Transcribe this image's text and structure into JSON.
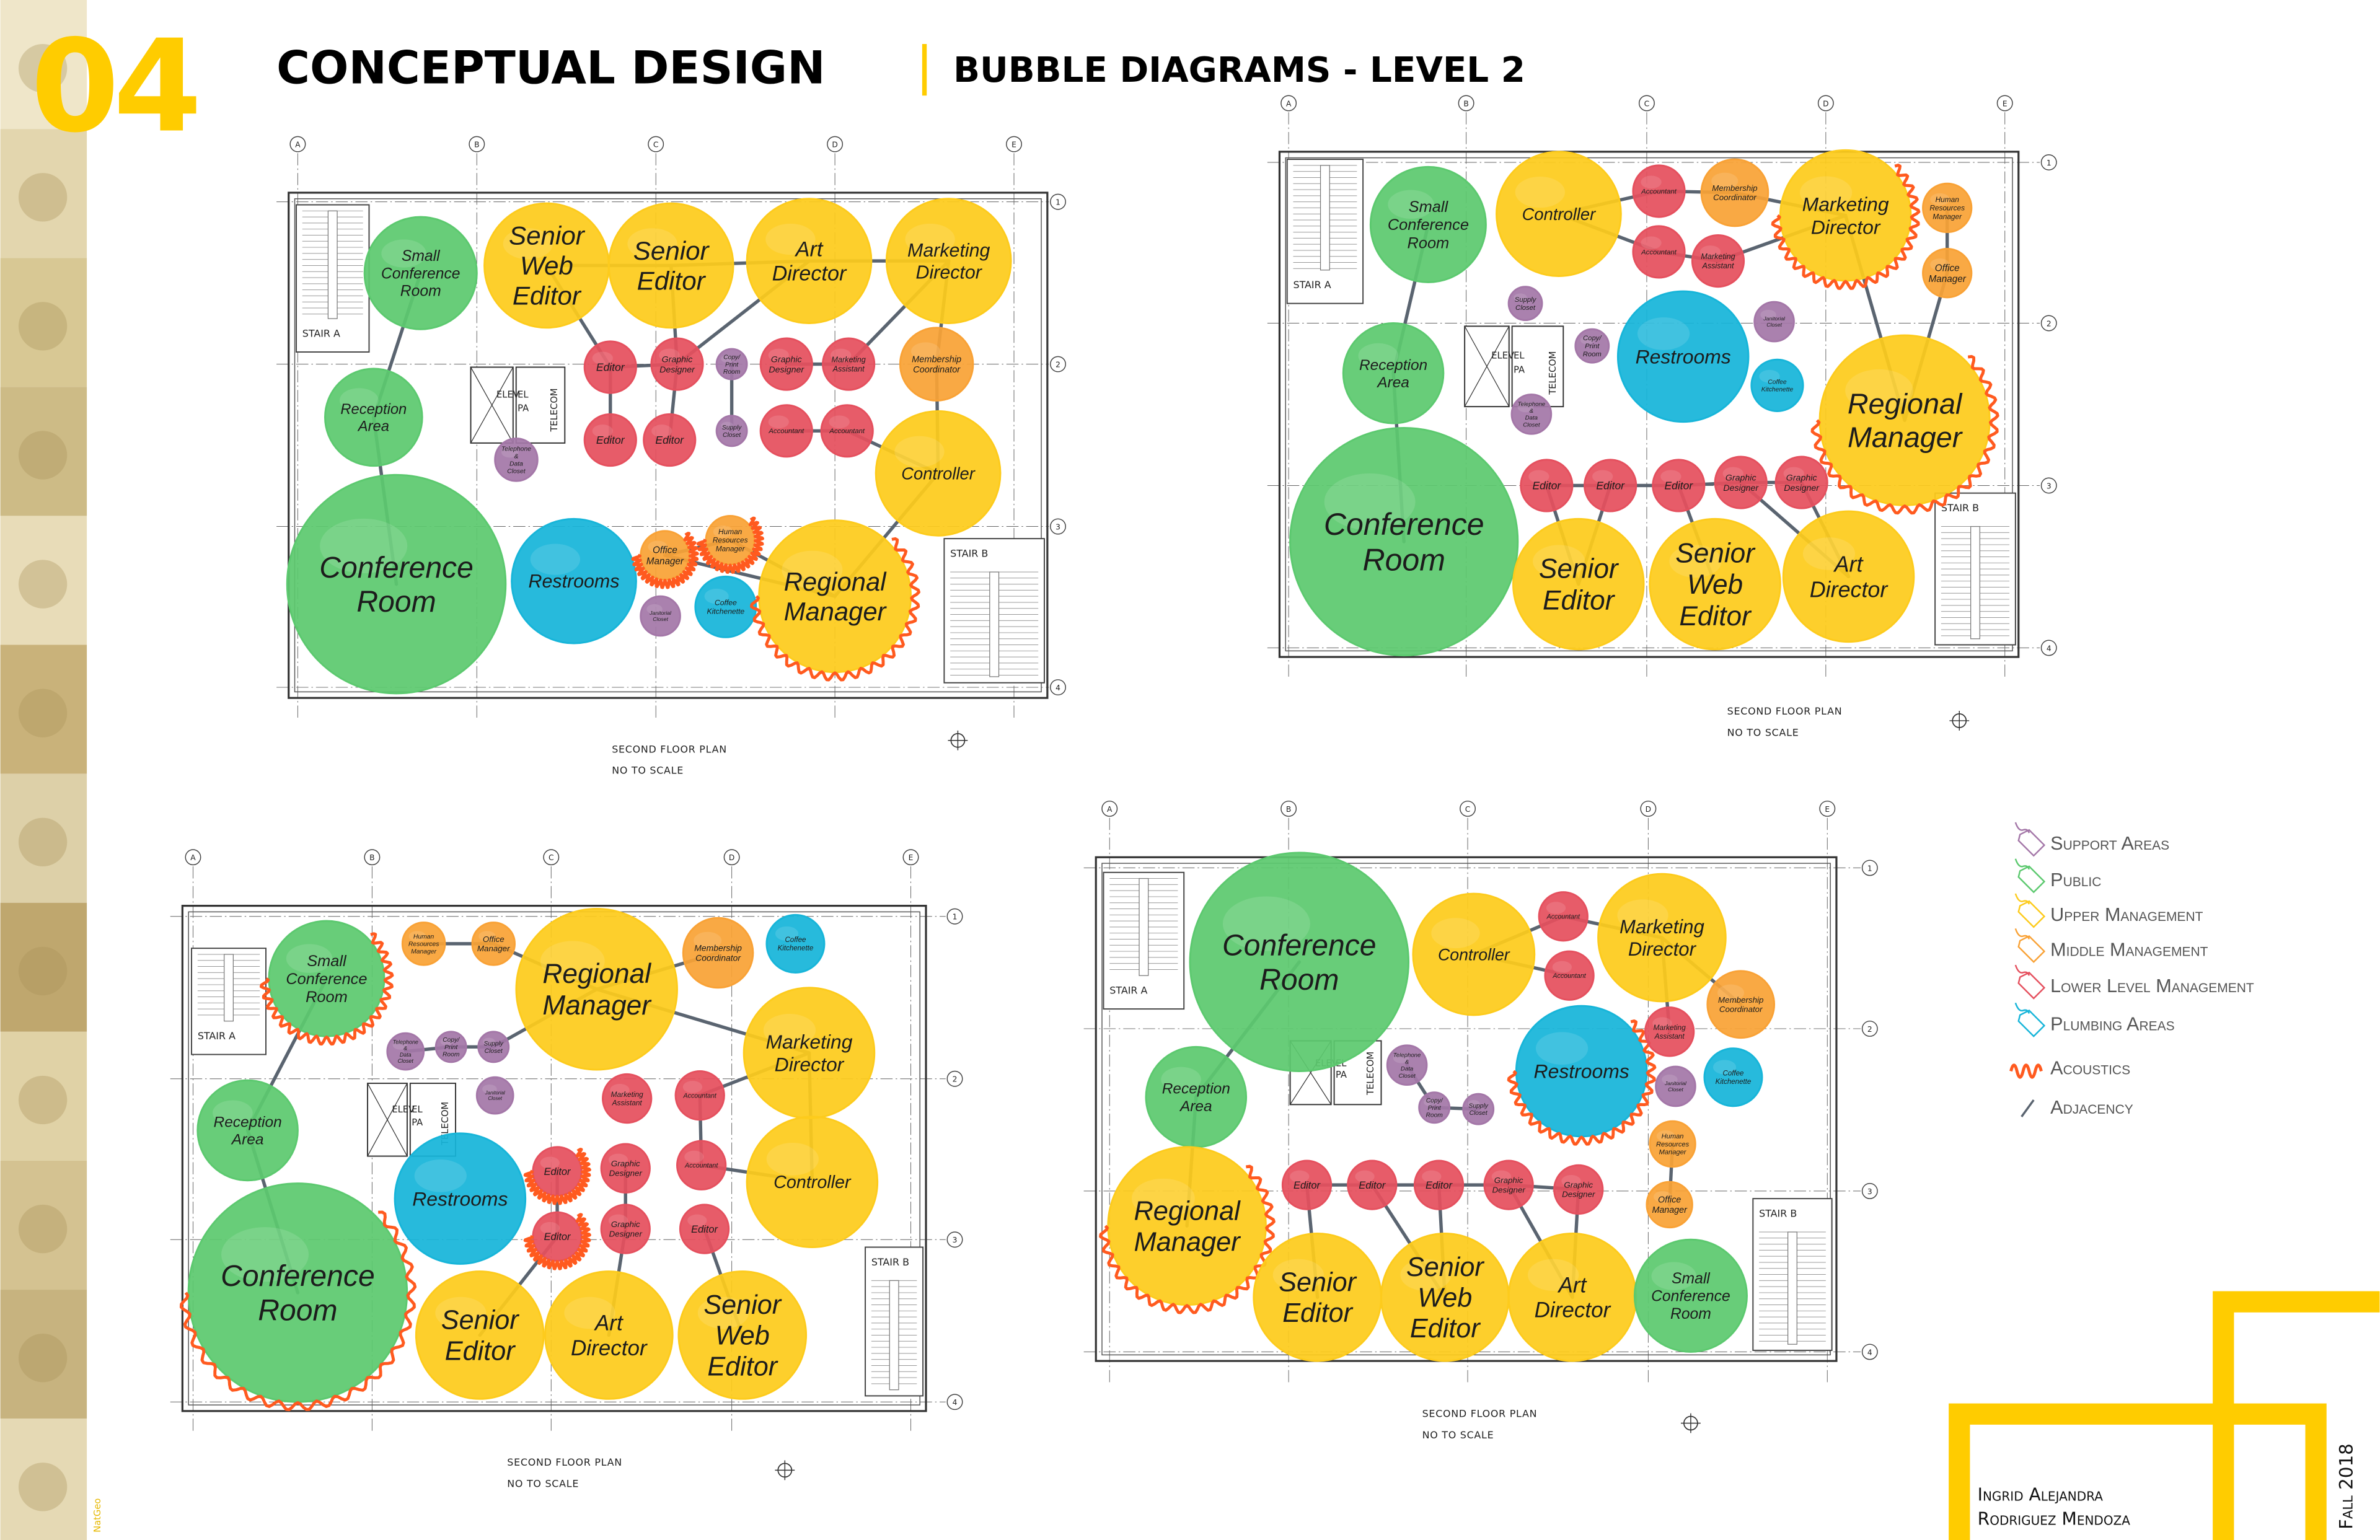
{
  "header": {
    "number": "04",
    "title": "CONCEPTUAL DESIGN",
    "subtitle": "BUBBLE DIAGRAMS - LEVEL 2"
  },
  "side_strip": {
    "credit": "NatGeo"
  },
  "colors": {
    "accent": "#ffcc00",
    "support": "#a477a8",
    "public": "#5cc96f",
    "upper": "#fdcb1c",
    "middle": "#f9a236",
    "lower": "#e5505e",
    "plumbing": "#17b5d9",
    "acoustics": "#ff5a1f",
    "adjacency": "#5a6470"
  },
  "grid": {
    "columns": [
      "A",
      "B",
      "C",
      "D",
      "E"
    ],
    "rows": [
      "1",
      "2",
      "3",
      "4"
    ]
  },
  "plan_labels": {
    "stair_a": "STAIR A",
    "stair_b": "STAIR B",
    "elev": "ELEV",
    "el": "EL",
    "pa": "PA",
    "telecom": "TELECOM",
    "caption": "SECOND FLOOR PLAN",
    "scale": "NO TO SCALE"
  },
  "plans": [
    {
      "bubbles": [
        {
          "type": "public",
          "lines": [
            "Small",
            "Conference",
            "Room"
          ]
        },
        {
          "type": "public",
          "lines": [
            "Reception",
            "Area"
          ]
        },
        {
          "type": "public",
          "lines": [
            "Conference",
            "Room"
          ]
        },
        {
          "type": "upper",
          "lines": [
            "Senior",
            "Web",
            "Editor"
          ]
        },
        {
          "type": "upper",
          "lines": [
            "Senior",
            "Editor"
          ]
        },
        {
          "type": "upper",
          "lines": [
            "Art",
            "Director"
          ]
        },
        {
          "type": "upper",
          "lines": [
            "Marketing",
            "Director"
          ]
        },
        {
          "type": "lower",
          "lines": [
            "Editor"
          ]
        },
        {
          "type": "lower",
          "lines": [
            "Graphic",
            "Designer"
          ]
        },
        {
          "type": "support",
          "lines": [
            "Copy/",
            "Print",
            "Room"
          ]
        },
        {
          "type": "lower",
          "lines": [
            "Graphic",
            "Designer"
          ]
        },
        {
          "type": "lower",
          "lines": [
            "Marketing",
            "Assistant"
          ]
        },
        {
          "type": "middle",
          "lines": [
            "Membership",
            "Coordinator"
          ]
        },
        {
          "type": "lower",
          "lines": [
            "Editor"
          ]
        },
        {
          "type": "lower",
          "lines": [
            "Editor"
          ]
        },
        {
          "type": "support",
          "lines": [
            "Supply",
            "Closet"
          ]
        },
        {
          "type": "lower",
          "lines": [
            "Accountant"
          ]
        },
        {
          "type": "lower",
          "lines": [
            "Accountant"
          ]
        },
        {
          "type": "support",
          "lines": [
            "Telephone",
            "&",
            "Data",
            "Closet"
          ]
        },
        {
          "type": "upper",
          "lines": [
            "Controller"
          ]
        },
        {
          "type": "plumbing",
          "lines": [
            "Restrooms"
          ]
        },
        {
          "type": "middle",
          "lines": [
            "Office",
            "Manager"
          ],
          "acoustics": true
        },
        {
          "type": "middle",
          "lines": [
            "Human",
            "Resources",
            "Manager"
          ],
          "acoustics": true
        },
        {
          "type": "support",
          "lines": [
            "Janitorial",
            "Closet"
          ]
        },
        {
          "type": "plumbing",
          "lines": [
            "Coffee",
            "Kitchenette"
          ]
        },
        {
          "type": "upper",
          "lines": [
            "Regional",
            "Manager"
          ],
          "acoustics": true
        }
      ]
    },
    {
      "bubbles": [
        {
          "type": "public",
          "lines": [
            "Small",
            "Conference",
            "Room"
          ]
        },
        {
          "type": "upper",
          "lines": [
            "Controller"
          ]
        },
        {
          "type": "lower",
          "lines": [
            "Accountant"
          ]
        },
        {
          "type": "middle",
          "lines": [
            "Membership",
            "Coordinator"
          ]
        },
        {
          "type": "lower",
          "lines": [
            "Accountant"
          ]
        },
        {
          "type": "lower",
          "lines": [
            "Marketing",
            "Assistant"
          ]
        },
        {
          "type": "upper",
          "lines": [
            "Marketing",
            "Director"
          ],
          "acoustics": true
        },
        {
          "type": "middle",
          "lines": [
            "Human",
            "Resources",
            "Manager"
          ]
        },
        {
          "type": "middle",
          "lines": [
            "Office",
            "Manager"
          ]
        },
        {
          "type": "support",
          "lines": [
            "Supply",
            "Closet"
          ]
        },
        {
          "type": "support",
          "lines": [
            "Copy/",
            "Print",
            "Room"
          ]
        },
        {
          "type": "support",
          "lines": [
            "Janitorial",
            "Closet"
          ]
        },
        {
          "type": "public",
          "lines": [
            "Reception",
            "Area"
          ]
        },
        {
          "type": "plumbing",
          "lines": [
            "Restrooms"
          ]
        },
        {
          "type": "plumbing",
          "lines": [
            "Coffee",
            "Kitchenette"
          ]
        },
        {
          "type": "support",
          "lines": [
            "Telephone",
            "&",
            "Data",
            "Closet"
          ]
        },
        {
          "type": "upper",
          "lines": [
            "Regional",
            "Manager"
          ],
          "acoustics": true
        },
        {
          "type": "public",
          "lines": [
            "Conference",
            "Room"
          ]
        },
        {
          "type": "lower",
          "lines": [
            "Editor"
          ]
        },
        {
          "type": "lower",
          "lines": [
            "Editor"
          ]
        },
        {
          "type": "lower",
          "lines": [
            "Editor"
          ]
        },
        {
          "type": "lower",
          "lines": [
            "Graphic",
            "Designer"
          ]
        },
        {
          "type": "lower",
          "lines": [
            "Graphic",
            "Designer"
          ]
        },
        {
          "type": "upper",
          "lines": [
            "Senior",
            "Editor"
          ]
        },
        {
          "type": "upper",
          "lines": [
            "Senior",
            "Web",
            "Editor"
          ]
        },
        {
          "type": "upper",
          "lines": [
            "Art",
            "Director"
          ]
        }
      ]
    },
    {
      "bubbles": [
        {
          "type": "public",
          "lines": [
            "Small",
            "Conference",
            "Room"
          ],
          "acoustics": true
        },
        {
          "type": "middle",
          "lines": [
            "Human",
            "Resources",
            "Manager"
          ]
        },
        {
          "type": "middle",
          "lines": [
            "Office",
            "Manager"
          ]
        },
        {
          "type": "upper",
          "lines": [
            "Regional",
            "Manager"
          ]
        },
        {
          "type": "middle",
          "lines": [
            "Membership",
            "Coordinator"
          ]
        },
        {
          "type": "plumbing",
          "lines": [
            "Coffee",
            "Kitchenette"
          ]
        },
        {
          "type": "support",
          "lines": [
            "Telephone",
            "&",
            "Data",
            "Closet"
          ]
        },
        {
          "type": "support",
          "lines": [
            "Copy/",
            "Print",
            "Room"
          ]
        },
        {
          "type": "support",
          "lines": [
            "Supply",
            "Closet"
          ]
        },
        {
          "type": "upper",
          "lines": [
            "Marketing",
            "Director"
          ]
        },
        {
          "type": "public",
          "lines": [
            "Reception",
            "Area"
          ]
        },
        {
          "type": "support",
          "lines": [
            "Janitorial",
            "Closet"
          ]
        },
        {
          "type": "lower",
          "lines": [
            "Marketing",
            "Assistant"
          ]
        },
        {
          "type": "lower",
          "lines": [
            "Accountant"
          ]
        },
        {
          "type": "plumbing",
          "lines": [
            "Restrooms"
          ]
        },
        {
          "type": "lower",
          "lines": [
            "Editor"
          ],
          "acoustics": true
        },
        {
          "type": "lower",
          "lines": [
            "Graphic",
            "Designer"
          ]
        },
        {
          "type": "lower",
          "lines": [
            "Accountant"
          ]
        },
        {
          "type": "upper",
          "lines": [
            "Controller"
          ]
        },
        {
          "type": "lower",
          "lines": [
            "Editor"
          ],
          "acoustics": true
        },
        {
          "type": "lower",
          "lines": [
            "Graphic",
            "Designer"
          ]
        },
        {
          "type": "lower",
          "lines": [
            "Editor"
          ]
        },
        {
          "type": "public",
          "lines": [
            "Conference",
            "Room"
          ],
          "acoustics": true
        },
        {
          "type": "upper",
          "lines": [
            "Senior",
            "Editor"
          ]
        },
        {
          "type": "upper",
          "lines": [
            "Art",
            "Director"
          ]
        },
        {
          "type": "upper",
          "lines": [
            "Senior",
            "Web",
            "Editor"
          ]
        }
      ]
    },
    {
      "bubbles": [
        {
          "type": "public",
          "lines": [
            "Conference",
            "Room"
          ]
        },
        {
          "type": "upper",
          "lines": [
            "Controller"
          ]
        },
        {
          "type": "lower",
          "lines": [
            "Accountant"
          ]
        },
        {
          "type": "lower",
          "lines": [
            "Accountant"
          ]
        },
        {
          "type": "upper",
          "lines": [
            "Marketing",
            "Director"
          ]
        },
        {
          "type": "middle",
          "lines": [
            "Membership",
            "Coordinator"
          ]
        },
        {
          "type": "support",
          "lines": [
            "Telephone",
            "&",
            "Data",
            "Closet"
          ]
        },
        {
          "type": "support",
          "lines": [
            "Copy/",
            "Print",
            "Room"
          ]
        },
        {
          "type": "support",
          "lines": [
            "Supply",
            "Closet"
          ]
        },
        {
          "type": "public",
          "lines": [
            "Reception",
            "Area"
          ]
        },
        {
          "type": "plumbing",
          "lines": [
            "Restrooms"
          ],
          "acoustics": true
        },
        {
          "type": "lower",
          "lines": [
            "Marketing",
            "Assistant"
          ]
        },
        {
          "type": "support",
          "lines": [
            "Janitorial",
            "Closet"
          ]
        },
        {
          "type": "plumbing",
          "lines": [
            "Coffee",
            "Kitchenette"
          ]
        },
        {
          "type": "middle",
          "lines": [
            "Human",
            "Resources",
            "Manager"
          ]
        },
        {
          "type": "middle",
          "lines": [
            "Office",
            "Manager"
          ]
        },
        {
          "type": "upper",
          "lines": [
            "Regional",
            "Manager"
          ],
          "acoustics": true
        },
        {
          "type": "lower",
          "lines": [
            "Editor"
          ]
        },
        {
          "type": "lower",
          "lines": [
            "Editor"
          ]
        },
        {
          "type": "lower",
          "lines": [
            "Editor"
          ]
        },
        {
          "type": "lower",
          "lines": [
            "Graphic",
            "Designer"
          ]
        },
        {
          "type": "lower",
          "lines": [
            "Graphic",
            "Designer"
          ]
        },
        {
          "type": "upper",
          "lines": [
            "Senior",
            "Editor"
          ]
        },
        {
          "type": "upper",
          "lines": [
            "Senior",
            "Web",
            "Editor"
          ]
        },
        {
          "type": "upper",
          "lines": [
            "Art",
            "Director"
          ]
        },
        {
          "type": "public",
          "lines": [
            "Small",
            "Conference",
            "Room"
          ]
        }
      ]
    }
  ],
  "legend": [
    {
      "type": "support",
      "label": "Support Areas",
      "icon": "tag-icon"
    },
    {
      "type": "public",
      "label": "Public",
      "icon": "tag-icon"
    },
    {
      "type": "upper",
      "label": "Upper Management",
      "icon": "tag-icon"
    },
    {
      "type": "middle",
      "label": "Middle Management",
      "icon": "tag-icon"
    },
    {
      "type": "lower",
      "label": "Lower Level Management",
      "icon": "tag-icon"
    },
    {
      "type": "plumbing",
      "label": "Plumbing Areas",
      "icon": "tag-icon"
    },
    {
      "type": "acoustics",
      "label": "Acoustics",
      "icon": "squiggle-icon"
    },
    {
      "type": "adjacency",
      "label": "Adjacency",
      "icon": "line-icon"
    }
  ],
  "footer": {
    "author_line1": "Ingrid Alejandra",
    "author_line2": "Rodriguez Mendoza",
    "term": "Fall 2018"
  }
}
